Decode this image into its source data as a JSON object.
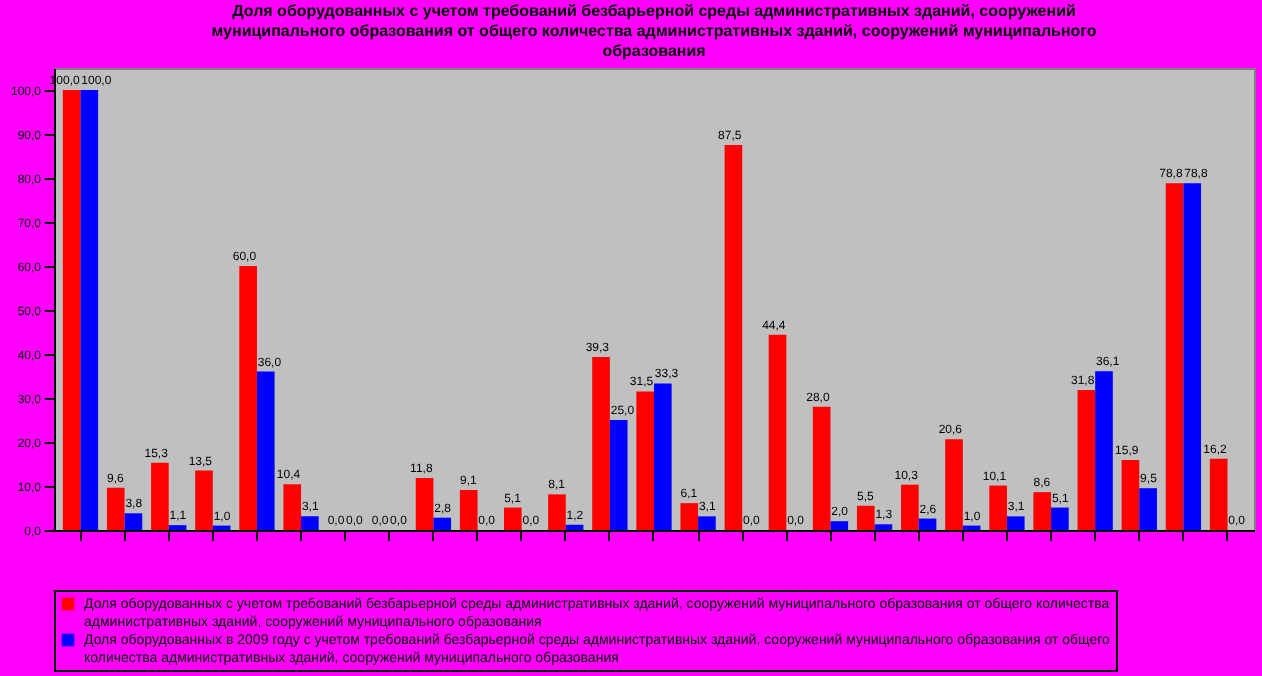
{
  "chart_data": {
    "type": "bar",
    "title": "Доля оборудованных с учетом требований безбарьерной среды административных зданий, сооружений муниципального образования от общего количества административных зданий, сооружений муниципального образования",
    "categories": [
      null,
      null,
      null,
      null,
      null,
      null,
      null,
      null,
      null,
      null,
      null,
      null,
      null,
      null,
      null,
      null,
      null,
      null,
      null,
      null,
      null,
      null,
      null,
      null,
      null,
      null,
      null
    ],
    "series": [
      {
        "name": "Доля оборудованных с учетом требований безбарьерной среды административных зданий, сооружений муниципального образования от общего количества административных зданий, сооружений муниципального образования",
        "color": "#ff0000",
        "values": [
          100,
          9.6,
          15.3,
          13.5,
          60.0,
          10.4,
          0,
          0,
          11.8,
          9.1,
          5.1,
          8.1,
          39.3,
          31.5,
          6.1,
          87.5,
          44.4,
          28.0,
          5.5,
          10.3,
          20.6,
          10.1,
          8.6,
          31.8,
          15.9,
          78.8,
          16.2
        ],
        "value_labels": [
          "100,0",
          "9,6",
          "15,3",
          "13,5",
          "60,0",
          "10,4",
          "0,0",
          "0,0",
          "11,8",
          "9,1",
          "5,1",
          "8,1",
          "39,3",
          "31,5",
          "6,1",
          "87,5",
          "44,4",
          "28,0",
          "5,5",
          "10,3",
          "20,6",
          "10,1",
          "8,6",
          "31,8",
          "15,9",
          "78,8",
          "16,2"
        ]
      },
      {
        "name": "Доля оборудованных в 2009 году с учетом требований безбарьерной среды административных зданий, сооружений муниципального образования от общего количества административных зданий, сооружений муниципального образования",
        "color": "#0000ff",
        "values": [
          100,
          3.8,
          1.1,
          1.0,
          36.0,
          3.1,
          0,
          0,
          2.8,
          0,
          0,
          1.2,
          25.0,
          33.3,
          3.1,
          0,
          0,
          2.0,
          1.3,
          2.6,
          1.0,
          3.1,
          5.1,
          36.1,
          9.5,
          78.8,
          0
        ],
        "value_labels": [
          "100,0",
          "3,8",
          "1,1",
          "1,0",
          "36,0",
          "3,1",
          "0,0",
          "0,0",
          "2,8",
          "0,0",
          "0,0",
          "1,2",
          "25,0",
          "33,3",
          "3,1",
          "0,0",
          "0,0",
          "2,0",
          "1,3",
          "2,6",
          "1,0",
          "3,1",
          "5,1",
          "36,1",
          "9,5",
          "78,8",
          "0,0"
        ]
      }
    ],
    "ylim": [
      0,
      105
    ],
    "yticks": [
      {
        "value": 0,
        "label": "0,0"
      },
      {
        "value": 10,
        "label": "10,0"
      },
      {
        "value": 20,
        "label": "20,0"
      },
      {
        "value": 30,
        "label": "30,0"
      },
      {
        "value": 40,
        "label": "40,0"
      },
      {
        "value": 50,
        "label": "50,0"
      },
      {
        "value": 60,
        "label": "60,0"
      },
      {
        "value": 70,
        "label": "70,0"
      },
      {
        "value": 80,
        "label": "80,0"
      },
      {
        "value": 90,
        "label": "90,0"
      },
      {
        "value": 100,
        "label": "100,0"
      }
    ],
    "grid": false,
    "legend": "bottom"
  }
}
